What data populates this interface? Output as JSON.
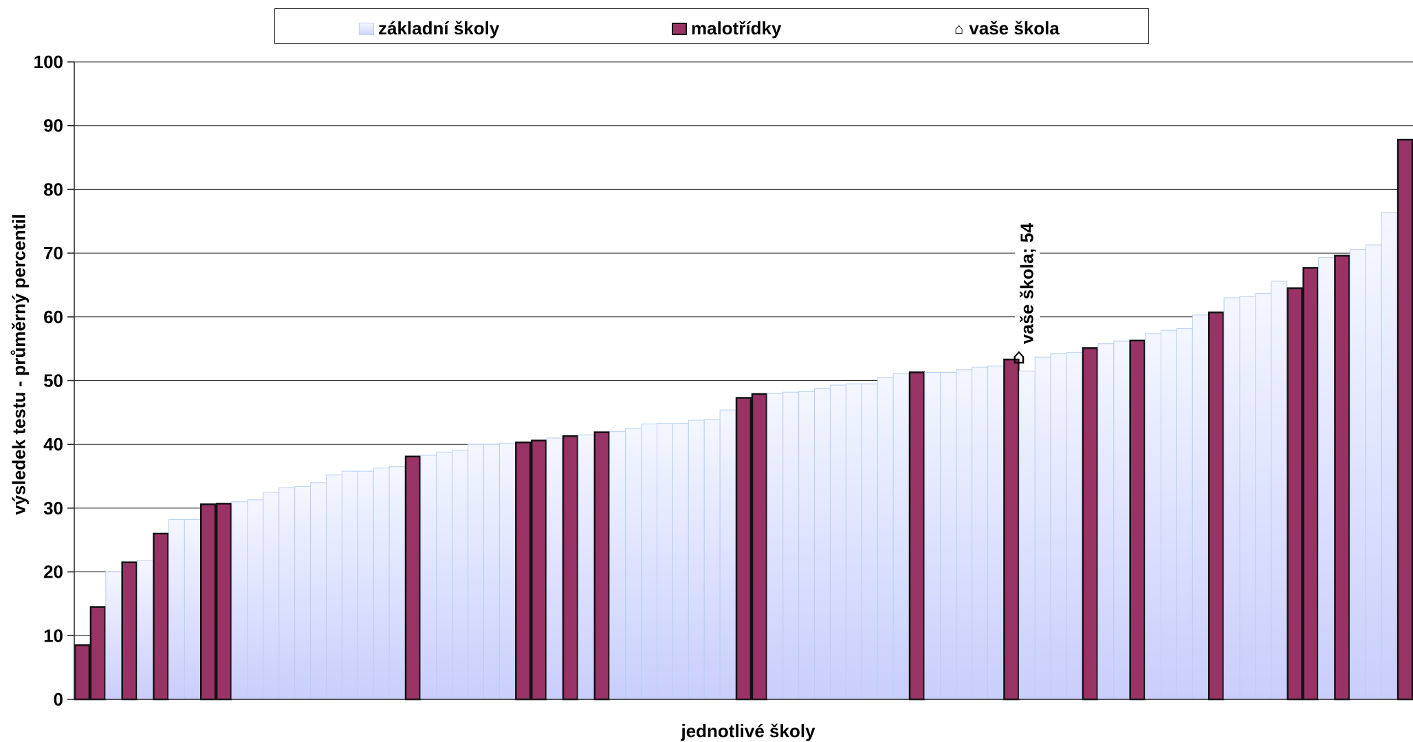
{
  "chart_data": {
    "type": "bar",
    "xlabel": "jednotlivé školy",
    "ylabel": "výsledek testu - průměrný percentil",
    "ylim": [
      0,
      100
    ],
    "yticks": [
      0,
      10,
      20,
      30,
      40,
      50,
      60,
      70,
      80,
      90,
      100
    ],
    "grid": true,
    "legend_position": "top",
    "legend": [
      {
        "key": "zs",
        "label": "základní školy"
      },
      {
        "key": "mt",
        "label": "malotřídky"
      },
      {
        "key": "vs",
        "label": "vaše škola",
        "icon": "house-icon"
      }
    ],
    "colors": {
      "zs_top": "#f4f6ff",
      "zs_bottom": "#c9cefb",
      "zs_edge": "#b7cff0",
      "mt": "#993366",
      "mt_edge": "#111111"
    },
    "annotation": {
      "text": "vaše škola; 54",
      "value": 54,
      "after_index": 59
    },
    "series": [
      {
        "name": "základní školy",
        "key": "zs",
        "values": [
          null,
          null,
          20,
          null,
          21.8,
          null,
          28.2,
          28.2,
          null,
          null,
          31.0,
          31.3,
          32.5,
          33.2,
          33.4,
          34.0,
          35.2,
          35.8,
          35.8,
          36.3,
          36.5,
          null,
          38.3,
          38.8,
          39.1,
          40.0,
          40.0,
          40.2,
          null,
          null,
          41.0,
          null,
          41.5,
          null,
          42.0,
          42.5,
          43.2,
          43.3,
          43.3,
          43.8,
          43.9,
          45.4,
          null,
          null,
          48.0,
          48.2,
          48.3,
          48.8,
          49.3,
          49.5,
          49.5,
          50.5,
          51.1,
          null,
          51.3,
          51.3,
          51.7,
          52.1,
          52.3,
          null,
          51.5,
          53.7,
          54.2,
          54.4,
          null,
          55.8,
          56.2,
          null,
          57.4,
          57.9,
          58.2,
          60.3,
          null,
          63.0,
          63.2,
          63.7,
          65.6,
          null,
          null,
          69.3,
          null,
          70.6,
          71.3,
          76.4,
          null
        ]
      },
      {
        "name": "malotřídky",
        "key": "mt",
        "values": [
          8.5,
          14.5,
          null,
          21.5,
          null,
          26.0,
          null,
          null,
          30.6,
          30.7,
          null,
          null,
          null,
          null,
          null,
          null,
          null,
          null,
          null,
          null,
          null,
          38.1,
          null,
          null,
          null,
          null,
          null,
          null,
          40.3,
          40.6,
          null,
          41.3,
          null,
          41.9,
          null,
          null,
          null,
          null,
          null,
          null,
          null,
          null,
          47.3,
          47.9,
          null,
          null,
          null,
          null,
          null,
          null,
          null,
          null,
          null,
          51.3,
          null,
          null,
          null,
          null,
          null,
          53.3,
          null,
          null,
          null,
          null,
          55.1,
          null,
          null,
          56.3,
          null,
          null,
          null,
          null,
          60.7,
          null,
          null,
          null,
          null,
          64.5,
          67.7,
          null,
          69.6,
          null,
          null,
          null,
          87.8
        ]
      }
    ]
  }
}
